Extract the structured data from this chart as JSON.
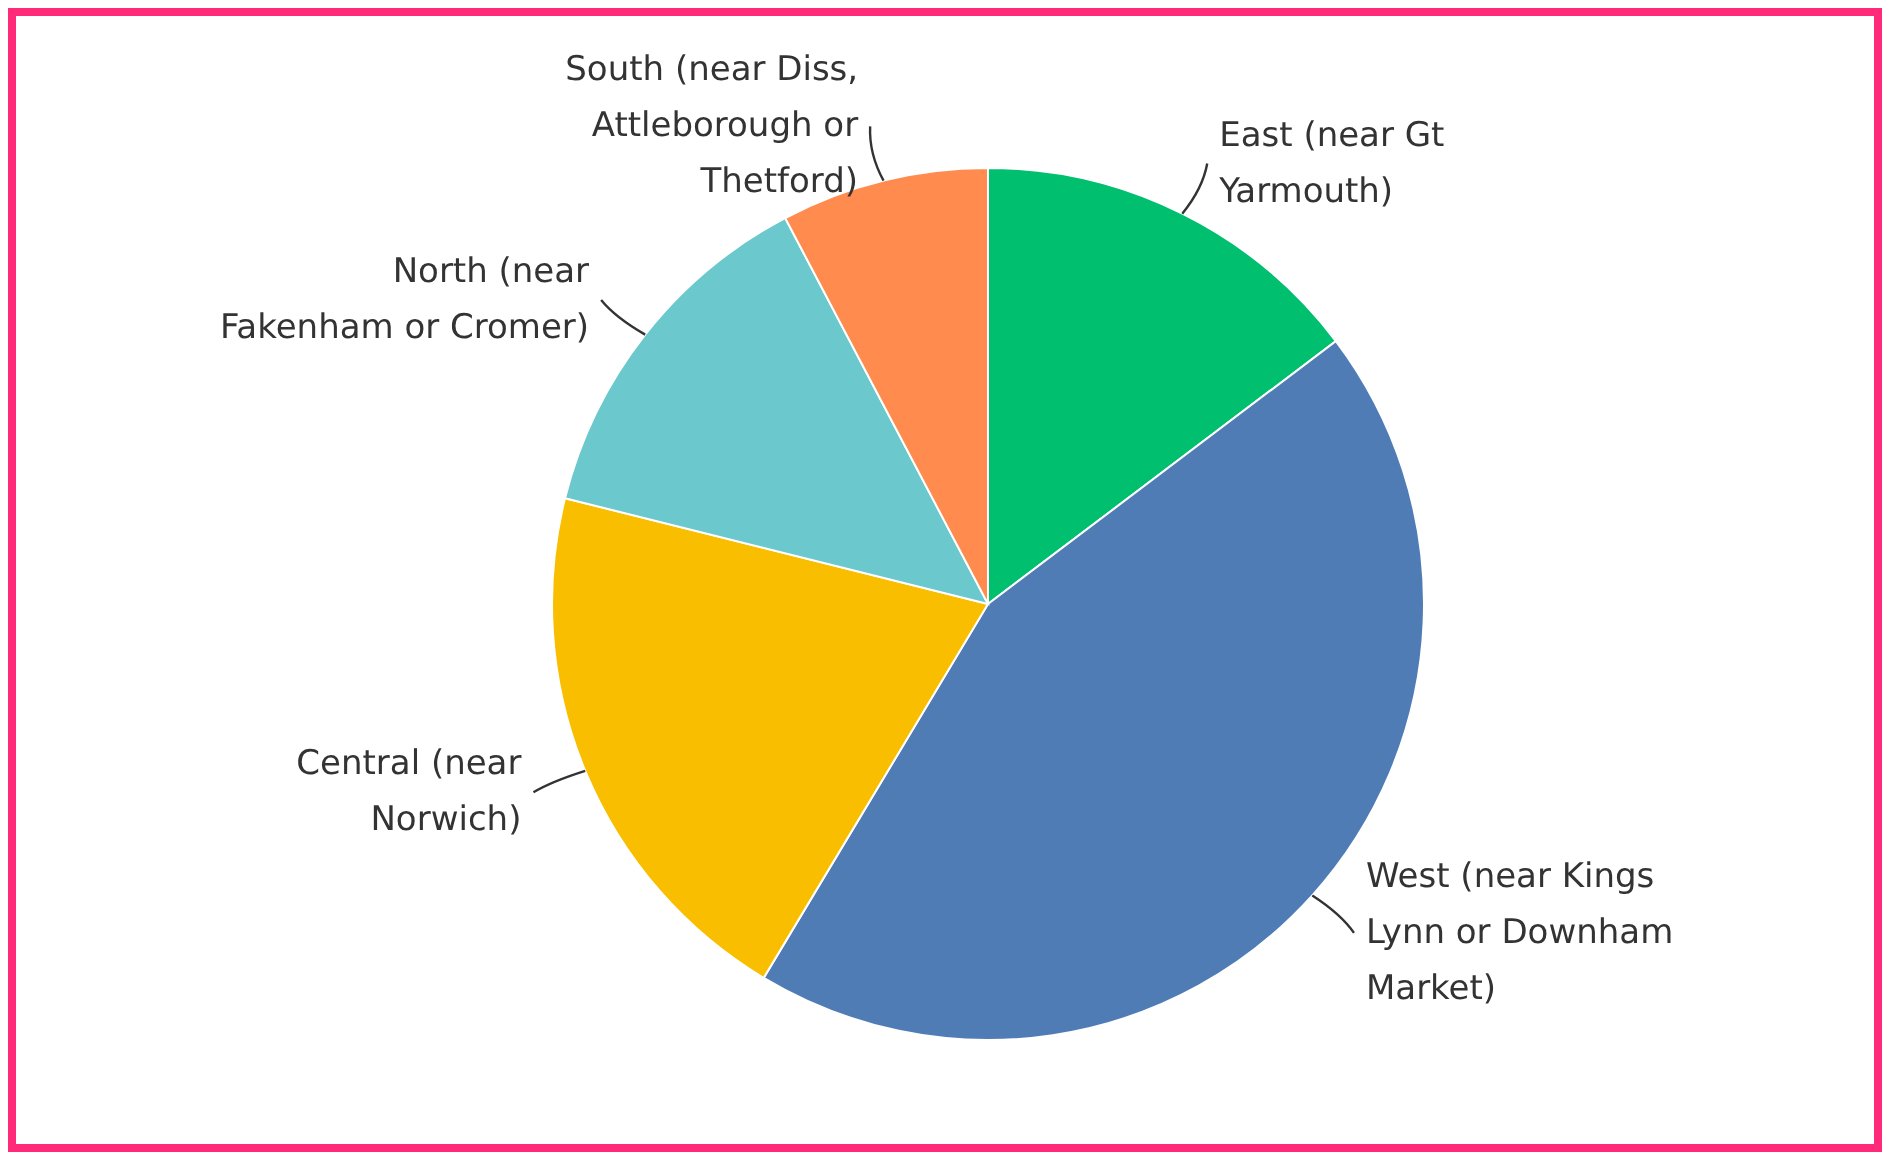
{
  "chart_data": {
    "type": "pie",
    "categories": [
      "East (near Gt\nYarmouth)",
      "West (near Kings\nLynn or Downham\nMarket)",
      "Central (near\nNorwich)",
      "North (near\nFakenham or Cromer)",
      "South (near Diss,\nAttleborough or\nThetford)"
    ],
    "values": [
      14.7,
      43.9,
      20.3,
      13.4,
      7.7
    ],
    "colors": [
      "#00bf6f",
      "#507cb6",
      "#f9be00",
      "#6bc8cd",
      "#ff8b4f"
    ]
  }
}
